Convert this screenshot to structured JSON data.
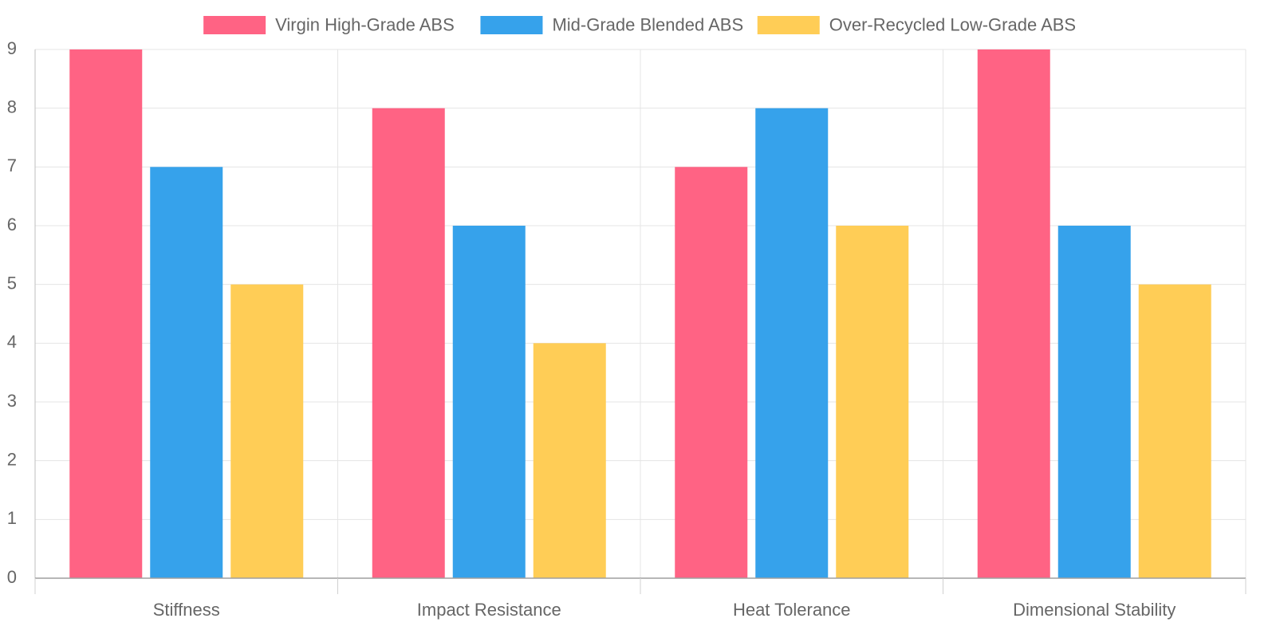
{
  "chart_data": {
    "type": "bar",
    "categories": [
      "Stiffness",
      "Impact Resistance",
      "Heat Tolerance",
      "Dimensional Stability"
    ],
    "series": [
      {
        "name": "Virgin High-Grade ABS",
        "color": "#ff6384",
        "values": [
          9,
          8,
          7,
          9
        ]
      },
      {
        "name": "Mid-Grade Blended ABS",
        "color": "#36a2eb",
        "values": [
          7,
          6,
          8,
          6
        ]
      },
      {
        "name": "Over-Recycled Low-Grade ABS",
        "color": "#ffcd56",
        "values": [
          5,
          4,
          6,
          5
        ]
      }
    ],
    "ylim": [
      0,
      9
    ],
    "yticks": [
      0,
      1,
      2,
      3,
      4,
      5,
      6,
      7,
      8,
      9
    ],
    "grid": true,
    "legend_position": "top-center"
  }
}
